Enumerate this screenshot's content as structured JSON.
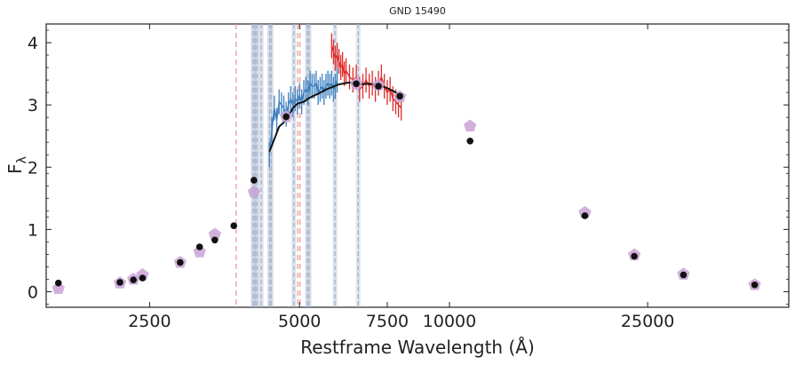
{
  "chart_data": {
    "type": "scatter",
    "title": "GND 15490",
    "xlabel": "Restframe Wavelength (Å)",
    "ylabel_main": "F",
    "ylabel_sub": "λ",
    "xscale": "log",
    "xlim": [
      1550,
      48000
    ],
    "ylim": [
      -0.25,
      4.3
    ],
    "xticks": [
      {
        "value": 2500,
        "label": "2500"
      },
      {
        "value": 5000,
        "label": "5000"
      },
      {
        "value": 7500,
        "label": "7500"
      },
      {
        "value": 10000,
        "label": "10000"
      },
      {
        "value": 25000,
        "label": "25000"
      }
    ],
    "yticks": [
      {
        "value": 0,
        "label": "0"
      },
      {
        "value": 1,
        "label": "1"
      },
      {
        "value": 2,
        "label": "2"
      },
      {
        "value": 3,
        "label": "3"
      },
      {
        "value": 4,
        "label": "4"
      }
    ],
    "colors": {
      "photometry": "#111111",
      "model_points": "#c9a3d6",
      "blue_spectrum": "#3b7fbf",
      "red_spectrum": "#e02a2a",
      "model_line": "#111111",
      "gray_lines": "#9fb0c8",
      "red_lines": "#f2a0a0"
    },
    "photometry": [
      {
        "x": 1640,
        "y": 0.14
      },
      {
        "x": 2180,
        "y": 0.15
      },
      {
        "x": 2320,
        "y": 0.19
      },
      {
        "x": 2420,
        "y": 0.22
      },
      {
        "x": 2880,
        "y": 0.47
      },
      {
        "x": 3150,
        "y": 0.72
      },
      {
        "x": 3380,
        "y": 0.83
      },
      {
        "x": 3690,
        "y": 1.06
      },
      {
        "x": 4050,
        "y": 1.79
      },
      {
        "x": 4700,
        "y": 2.81
      },
      {
        "x": 6500,
        "y": 3.34
      },
      {
        "x": 7200,
        "y": 3.3
      },
      {
        "x": 7950,
        "y": 3.14
      },
      {
        "x": 11000,
        "y": 2.42
      },
      {
        "x": 18700,
        "y": 1.22
      },
      {
        "x": 23500,
        "y": 0.57
      },
      {
        "x": 29500,
        "y": 0.27
      },
      {
        "x": 41000,
        "y": 0.11
      }
    ],
    "model_points": [
      {
        "x": 1640,
        "y": 0.05
      },
      {
        "x": 2180,
        "y": 0.14
      },
      {
        "x": 2320,
        "y": 0.2
      },
      {
        "x": 2420,
        "y": 0.27
      },
      {
        "x": 2880,
        "y": 0.47
      },
      {
        "x": 3150,
        "y": 0.64
      },
      {
        "x": 3380,
        "y": 0.92
      },
      {
        "x": 4050,
        "y": 1.6
      },
      {
        "x": 4700,
        "y": 2.81
      },
      {
        "x": 6500,
        "y": 3.34
      },
      {
        "x": 7200,
        "y": 3.32
      },
      {
        "x": 7950,
        "y": 3.13
      },
      {
        "x": 11000,
        "y": 2.66
      },
      {
        "x": 18700,
        "y": 1.27
      },
      {
        "x": 23500,
        "y": 0.59
      },
      {
        "x": 29500,
        "y": 0.28
      },
      {
        "x": 41000,
        "y": 0.11
      }
    ],
    "spectrum_blue": [
      {
        "x": 4350,
        "y": 2.2
      },
      {
        "x": 4400,
        "y": 2.6
      },
      {
        "x": 4450,
        "y": 2.95
      },
      {
        "x": 4500,
        "y": 2.75
      },
      {
        "x": 4550,
        "y": 3.05
      },
      {
        "x": 4600,
        "y": 3.0
      },
      {
        "x": 4650,
        "y": 2.95
      },
      {
        "x": 4700,
        "y": 2.85
      },
      {
        "x": 4750,
        "y": 3.0
      },
      {
        "x": 4800,
        "y": 3.1
      },
      {
        "x": 4850,
        "y": 3.0
      },
      {
        "x": 4900,
        "y": 3.1
      },
      {
        "x": 4950,
        "y": 3.05
      },
      {
        "x": 5000,
        "y": 3.15
      },
      {
        "x": 5050,
        "y": 3.05
      },
      {
        "x": 5100,
        "y": 3.2
      },
      {
        "x": 5150,
        "y": 3.25
      },
      {
        "x": 5200,
        "y": 3.2
      },
      {
        "x": 5250,
        "y": 3.35
      },
      {
        "x": 5300,
        "y": 3.3
      },
      {
        "x": 5350,
        "y": 3.3
      },
      {
        "x": 5400,
        "y": 3.35
      },
      {
        "x": 5450,
        "y": 3.2
      },
      {
        "x": 5500,
        "y": 3.25
      },
      {
        "x": 5550,
        "y": 3.3
      },
      {
        "x": 5600,
        "y": 3.2
      },
      {
        "x": 5650,
        "y": 3.3
      },
      {
        "x": 5700,
        "y": 3.35
      },
      {
        "x": 5750,
        "y": 3.3
      },
      {
        "x": 5800,
        "y": 3.35
      },
      {
        "x": 5850,
        "y": 3.25
      },
      {
        "x": 5900,
        "y": 3.3
      },
      {
        "x": 5950,
        "y": 3.4
      }
    ],
    "spectrum_red": [
      {
        "x": 5800,
        "y": 3.95
      },
      {
        "x": 5850,
        "y": 3.85
      },
      {
        "x": 5900,
        "y": 3.75
      },
      {
        "x": 5950,
        "y": 3.8
      },
      {
        "x": 6000,
        "y": 3.7
      },
      {
        "x": 6050,
        "y": 3.6
      },
      {
        "x": 6100,
        "y": 3.65
      },
      {
        "x": 6150,
        "y": 3.5
      },
      {
        "x": 6200,
        "y": 3.55
      },
      {
        "x": 6300,
        "y": 3.45
      },
      {
        "x": 6400,
        "y": 3.4
      },
      {
        "x": 6500,
        "y": 3.45
      },
      {
        "x": 6600,
        "y": 3.25
      },
      {
        "x": 6700,
        "y": 3.3
      },
      {
        "x": 6800,
        "y": 3.4
      },
      {
        "x": 6900,
        "y": 3.3
      },
      {
        "x": 7000,
        "y": 3.35
      },
      {
        "x": 7100,
        "y": 3.25
      },
      {
        "x": 7200,
        "y": 3.35
      },
      {
        "x": 7300,
        "y": 3.45
      },
      {
        "x": 7400,
        "y": 3.3
      },
      {
        "x": 7500,
        "y": 3.2
      },
      {
        "x": 7600,
        "y": 3.25
      },
      {
        "x": 7700,
        "y": 3.1
      },
      {
        "x": 7800,
        "y": 3.05
      },
      {
        "x": 7900,
        "y": 3.0
      },
      {
        "x": 8000,
        "y": 2.95
      }
    ],
    "model_line": [
      {
        "x": 4350,
        "y": 2.25
      },
      {
        "x": 4450,
        "y": 2.45
      },
      {
        "x": 4550,
        "y": 2.65
      },
      {
        "x": 4650,
        "y": 2.72
      },
      {
        "x": 4750,
        "y": 2.82
      },
      {
        "x": 4850,
        "y": 2.95
      },
      {
        "x": 4950,
        "y": 3.02
      },
      {
        "x": 5100,
        "y": 3.05
      },
      {
        "x": 5250,
        "y": 3.12
      },
      {
        "x": 5450,
        "y": 3.18
      },
      {
        "x": 5700,
        "y": 3.26
      },
      {
        "x": 6000,
        "y": 3.33
      },
      {
        "x": 6300,
        "y": 3.36
      },
      {
        "x": 6600,
        "y": 3.33
      },
      {
        "x": 6900,
        "y": 3.34
      },
      {
        "x": 7200,
        "y": 3.32
      },
      {
        "x": 7500,
        "y": 3.27
      },
      {
        "x": 7800,
        "y": 3.2
      },
      {
        "x": 8000,
        "y": 3.15
      }
    ],
    "gray_vlines": [
      4030,
      4070,
      4110,
      4190,
      4350,
      4390,
      4870,
      5180,
      5230,
      5890,
      6560
    ],
    "red_vlines": [
      3730,
      4960,
      5010
    ]
  }
}
